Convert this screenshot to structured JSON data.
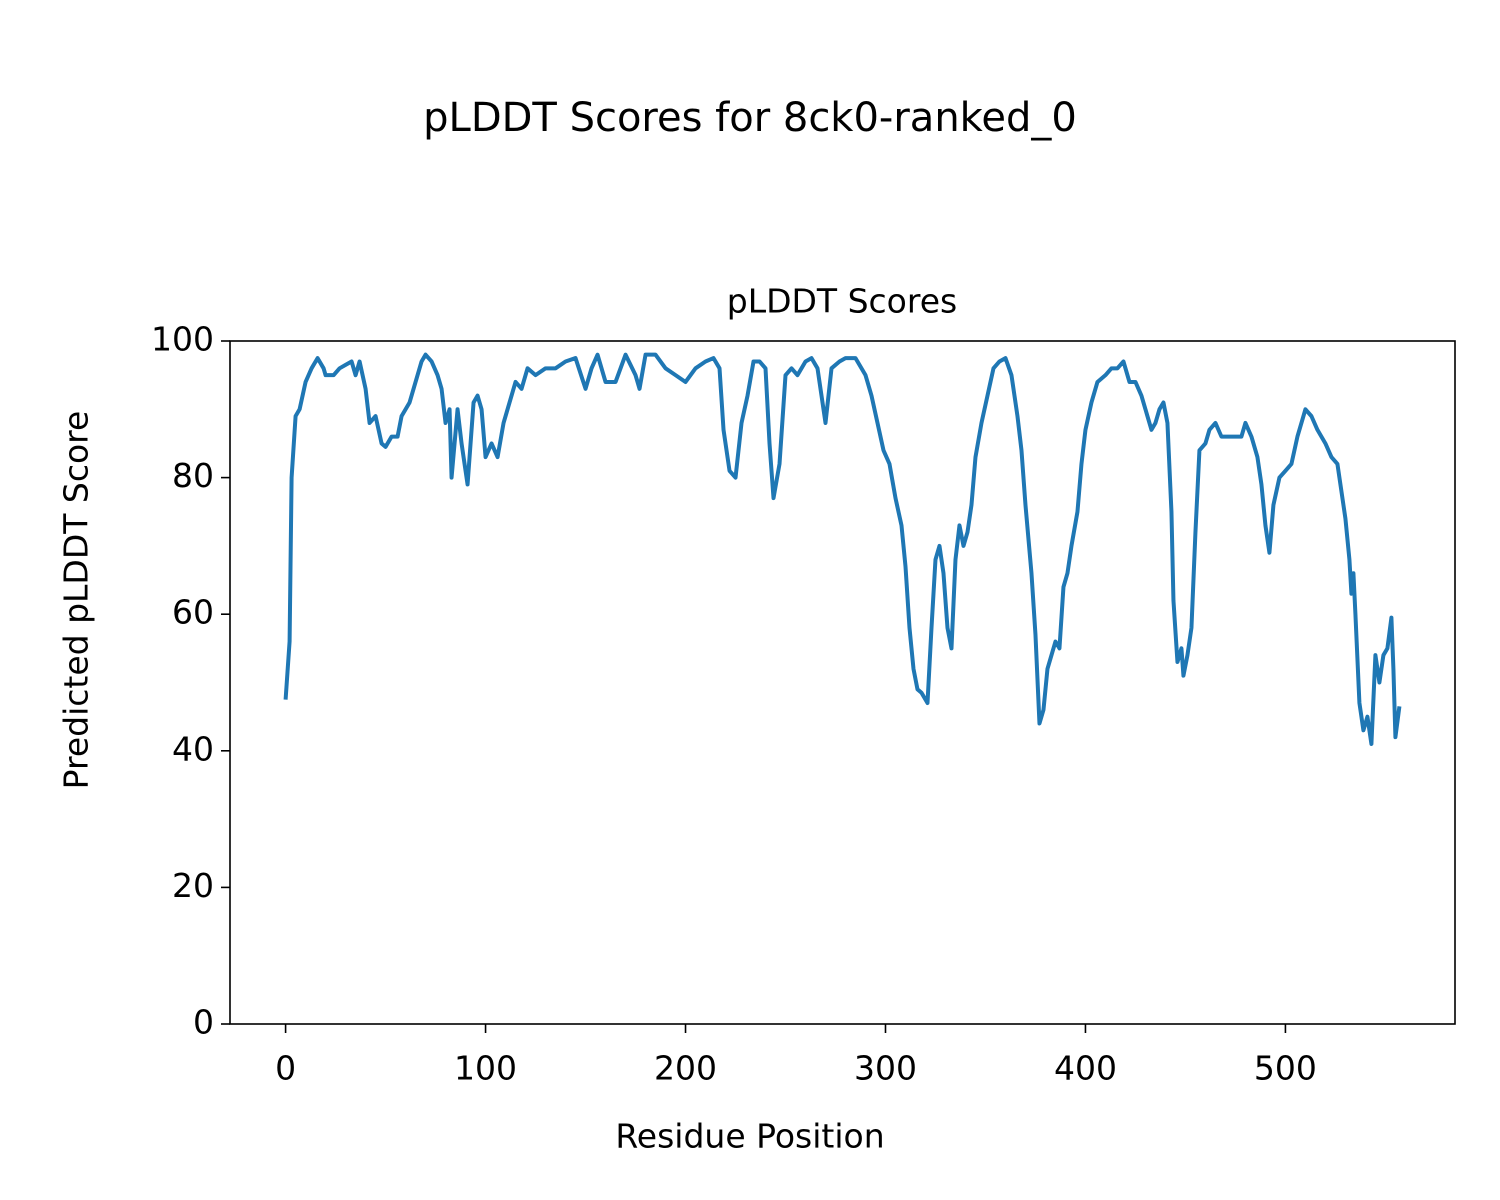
{
  "chart_data": {
    "type": "line",
    "title": "pLDDT Scores for 8ck0-ranked_0",
    "subtitle": "pLDDT Scores",
    "x_label": "Residue Position",
    "y_label": "Predicted pLDDT Score",
    "x": [
      0,
      2,
      3,
      5,
      7,
      10,
      13,
      16,
      19,
      20,
      24,
      27,
      30,
      33,
      35,
      37,
      40,
      42,
      45,
      48,
      50,
      53,
      56,
      58,
      62,
      65,
      68,
      70,
      73,
      76,
      78,
      80,
      82,
      83,
      86,
      88,
      91,
      94,
      96,
      98,
      100,
      103,
      106,
      109,
      112,
      115,
      118,
      121,
      125,
      130,
      135,
      140,
      145,
      150,
      153,
      156,
      160,
      165,
      170,
      175,
      177,
      180,
      185,
      190,
      195,
      200,
      205,
      210,
      214,
      217,
      219,
      222,
      225,
      228,
      231,
      234,
      237,
      240,
      242,
      244,
      247,
      250,
      253,
      256,
      260,
      263,
      266,
      268,
      270,
      273,
      277,
      280,
      285,
      290,
      293,
      296,
      299,
      302,
      305,
      308,
      310,
      312,
      314,
      316,
      318,
      321,
      323,
      325,
      327,
      329,
      331,
      333,
      335,
      337,
      339,
      341,
      343,
      345,
      348,
      351,
      354,
      357,
      360,
      363,
      366,
      368,
      370,
      373,
      375,
      377,
      379,
      381,
      383,
      385,
      387,
      389,
      391,
      393,
      396,
      398,
      400,
      403,
      406,
      410,
      413,
      416,
      419,
      422,
      425,
      428,
      431,
      433,
      435,
      437,
      439,
      441,
      443,
      444,
      446,
      448,
      449,
      451,
      453,
      455,
      457,
      460,
      462,
      465,
      468,
      472,
      475,
      478,
      480,
      483,
      486,
      488,
      490,
      492,
      494,
      497,
      500,
      503,
      506,
      509,
      510,
      513,
      516,
      520,
      523,
      526,
      528,
      530,
      532,
      533,
      534,
      535,
      537,
      539,
      541,
      543,
      545,
      547,
      549,
      551,
      553,
      554,
      555,
      557
    ],
    "series": [
      {
        "name": "pLDDT",
        "color": "#1f77b4",
        "values": [
          47.5,
          56,
          80,
          89,
          90,
          94,
          96,
          97.5,
          96,
          95,
          95,
          96,
          96.5,
          97,
          95,
          97,
          93,
          88,
          89,
          85,
          84.5,
          86,
          86,
          89,
          91,
          94,
          97,
          98,
          97,
          95,
          93,
          88,
          90,
          80,
          90,
          85,
          79,
          91,
          92,
          90,
          83,
          85,
          83,
          88,
          91,
          94,
          93,
          96,
          95,
          96,
          96,
          97,
          97.5,
          93,
          96,
          98,
          94,
          94,
          98,
          95,
          93,
          98,
          98,
          96,
          95,
          94,
          96,
          97,
          97.5,
          96,
          87,
          81,
          80,
          88,
          92,
          97,
          97,
          96,
          85,
          77,
          82,
          95,
          96,
          95,
          97,
          97.5,
          96,
          92,
          88,
          96,
          97,
          97.5,
          97.5,
          95,
          92,
          88,
          84,
          82,
          77,
          73,
          67,
          58,
          52,
          49,
          48.5,
          47,
          58,
          68,
          70,
          66,
          58,
          55,
          68,
          73,
          70,
          72,
          76,
          83,
          88,
          92,
          96,
          97,
          97.5,
          95,
          89,
          84,
          76,
          66,
          57,
          44,
          46,
          52,
          54,
          56,
          55,
          64,
          66,
          70,
          75,
          82,
          87,
          91,
          94,
          95,
          96,
          96,
          97,
          94,
          94,
          92,
          89,
          87,
          88,
          90,
          91,
          88,
          75,
          62,
          53,
          55,
          51,
          54,
          58,
          72,
          84,
          85,
          87,
          88,
          86,
          86,
          86,
          86,
          88,
          86,
          83,
          79,
          73,
          69,
          76,
          80,
          81,
          82,
          86,
          89,
          90,
          89,
          87,
          85,
          83,
          82,
          78,
          74,
          68,
          63,
          66,
          60,
          47,
          43,
          45,
          41,
          54,
          50,
          54,
          55,
          59.5,
          52,
          42,
          46.5
        ]
      }
    ],
    "xlim": [
      -27.8,
      584.8
    ],
    "ylim": [
      0,
      100
    ],
    "xticks": [
      0,
      100,
      200,
      300,
      400,
      500
    ],
    "yticks": [
      0,
      20,
      40,
      60,
      80,
      100
    ]
  }
}
